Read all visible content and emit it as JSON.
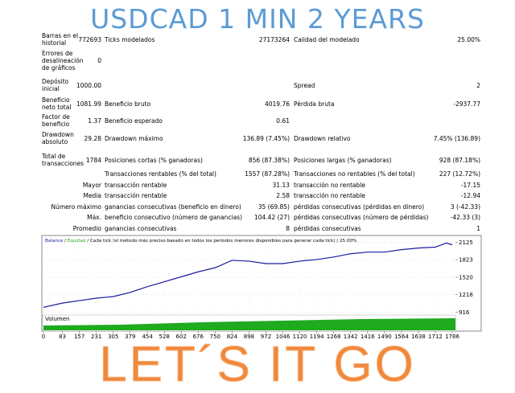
{
  "header": {
    "title": "USDCAD 1 MIN 2 YEARS"
  },
  "report": {
    "rows": [
      {
        "cells": [
          {
            "label": "Barras en el historial",
            "value": "772693"
          },
          {
            "label": "Ticks modelados",
            "value": "27173264"
          },
          {
            "label": "Calidad del modelado",
            "value": "25.00%"
          }
        ]
      },
      {
        "cells": [
          {
            "label": "Errores de desalineación de gráficos",
            "value": "0"
          },
          null,
          null
        ]
      },
      {
        "cells": [
          {
            "label": "Depósito inicial",
            "value": "1000.00"
          },
          null,
          {
            "label": "Spread",
            "value": "2"
          }
        ]
      },
      {
        "cells": [
          {
            "label": "Beneficio neto total",
            "value": "1081.99"
          },
          {
            "label": "Beneficio bruto",
            "value": "4019.76"
          },
          {
            "label": "Pérdida bruta",
            "value": "-2937.77"
          }
        ]
      },
      {
        "cells": [
          {
            "label": "Factor de beneficio",
            "value": "1.37"
          },
          {
            "label": "Beneficio esperado",
            "value": "0.61"
          },
          null
        ]
      },
      {
        "cells": [
          {
            "label": "Drawdown absoluto",
            "value": "29.28"
          },
          {
            "label": "Drawdown máximo",
            "value": "136.89 (7.45%)"
          },
          {
            "label": "Drawdown relativo",
            "value": "7.45% (136.89)"
          }
        ]
      },
      {
        "cells": [
          {
            "label": "Total de transacciones",
            "value": "1784"
          },
          {
            "label": "Posiciones cortas (% ganadoras)",
            "value": "856 (87.38%)"
          },
          {
            "label": "Posiciones largas (% ganadoras)",
            "value": "928 (87.18%)"
          }
        ]
      },
      {
        "cells": [
          null,
          {
            "label": "Transacciones rentables (% del total)",
            "value": "1557 (87.28%)"
          },
          {
            "label": "Transacciones no rentables (% del total)",
            "value": "227 (12.72%)"
          }
        ]
      },
      {
        "cells": [
          {
            "value": "Mayor"
          },
          {
            "label": "transacción rentable",
            "value": "31.13"
          },
          {
            "label": "transacción no rentable",
            "value": "-17.15"
          }
        ]
      },
      {
        "cells": [
          {
            "value": "Media"
          },
          {
            "label": "transacción rentable",
            "value": "2.58"
          },
          {
            "label": "transacción no rentable",
            "value": "-12.94"
          }
        ]
      },
      {
        "cells": [
          {
            "value": "Número máximo"
          },
          {
            "label": "ganancias consecutivas (beneficio en dinero)",
            "value": "35 (69.85)"
          },
          {
            "label": "pérdidas consecutivas (pérdidas en dinero)",
            "value": "3 (-42.33)"
          }
        ]
      },
      {
        "cells": [
          {
            "value": "Máx."
          },
          {
            "label": "beneficio consecutivo (número de ganancias)",
            "value": "104.42 (27)"
          },
          {
            "label": "pérdidas consecutivas (número de pérdidas)",
            "value": "-42.33 (3)"
          }
        ]
      },
      {
        "cells": [
          {
            "value": "Promedio"
          },
          {
            "label": "ganancias consecutivas",
            "value": "8"
          },
          {
            "label": "pérdidas consecutivas",
            "value": "1"
          }
        ]
      }
    ]
  },
  "chart": {
    "type": "line",
    "legend": [
      {
        "text": "Balance",
        "color": "#1a1aa0"
      },
      {
        "text": " / ",
        "color": "#000000"
      },
      {
        "text": "Equidad",
        "color": "#1faa1f"
      },
      {
        "text": " / Cada tick (el método más preciso basado en todos los períodos menores disponibles para generar cada tick) / 25.00%",
        "color": "#000000"
      }
    ],
    "volume_label": "Volumen",
    "x": [
      0,
      83,
      157,
      231,
      305,
      379,
      454,
      528,
      602,
      676,
      750,
      824,
      898,
      972,
      1046,
      1120,
      1194,
      1268,
      1342,
      1416,
      1490,
      1564,
      1638,
      1712,
      1760,
      1786
    ],
    "series": [
      {
        "name": "Balance",
        "color": "#1a1aa0",
        "values": [
          1000,
          1073,
          1115,
          1158,
          1186,
          1258,
          1357,
          1442,
          1528,
          1613,
          1684,
          1812,
          1798,
          1755,
          1755,
          1798,
          1826,
          1869,
          1926,
          1954,
          1954,
          1997,
          2025,
          2040,
          2111,
          2082
        ]
      }
    ],
    "xlim": [
      0,
      1800
    ],
    "ylim": [
      880,
      2200
    ],
    "xticks": [
      0,
      83,
      157,
      231,
      305,
      379,
      454,
      528,
      602,
      676,
      750,
      824,
      898,
      972,
      1046,
      1120,
      1194,
      1268,
      1342,
      1416,
      1490,
      1564,
      1638,
      1712,
      1786
    ],
    "yticks": [
      916,
      1218,
      1520,
      1823,
      2125
    ],
    "grid": true
  },
  "footer": {
    "text": "LET´S IT GO"
  }
}
